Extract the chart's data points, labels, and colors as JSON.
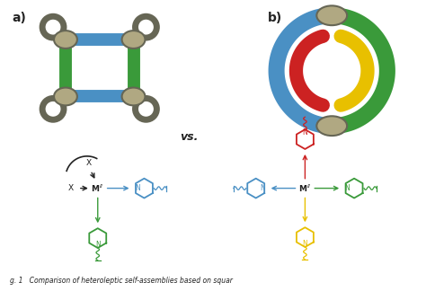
{
  "background_color": "#ffffff",
  "label_a": "a)",
  "label_b": "b)",
  "vs_text": "vs.",
  "colors": {
    "blue": "#4a90c4",
    "green": "#3a9a3a",
    "red": "#cc2222",
    "yellow": "#e8c000",
    "gray": "#b0a882",
    "gray_dark": "#666655",
    "black": "#222222"
  },
  "caption": "g. 1   Comparison of heteroleptic self-assemblies based on squar"
}
